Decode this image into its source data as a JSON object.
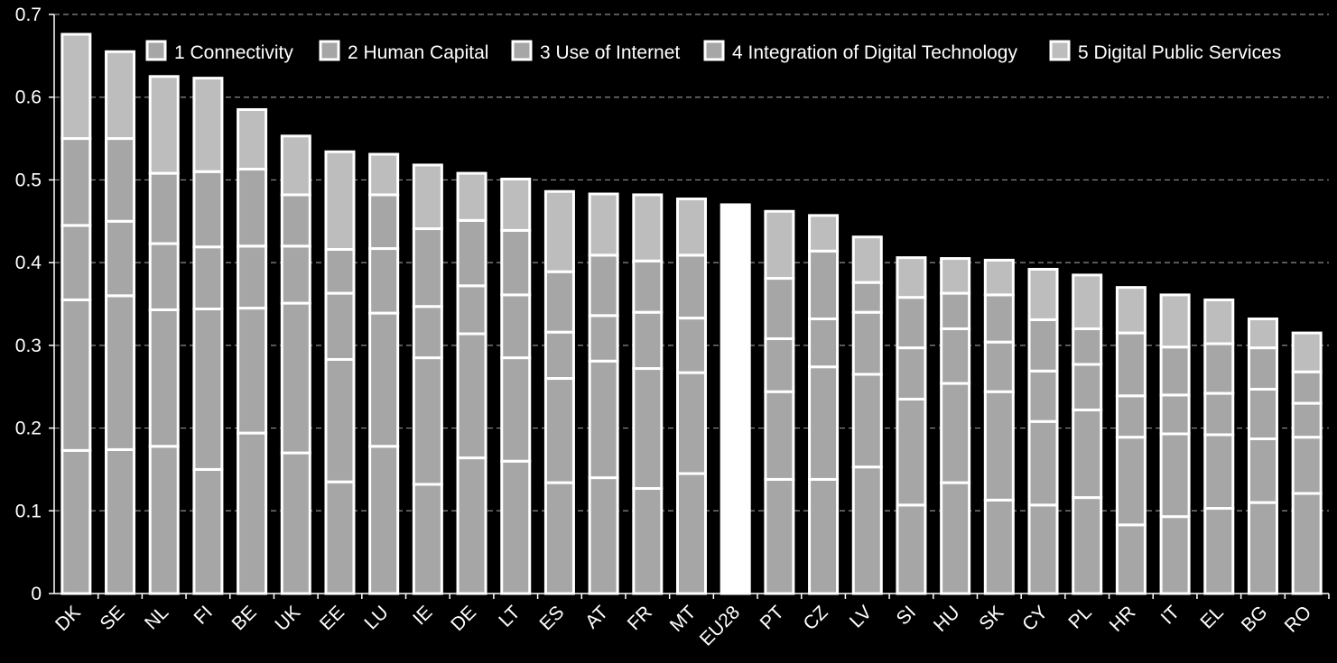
{
  "chart_data": {
    "type": "bar",
    "stacked": true,
    "title": "",
    "xlabel": "",
    "ylabel": "",
    "ylim": [
      0,
      0.7
    ],
    "yticks": [
      "0",
      "0.1",
      "0.2",
      "0.3",
      "0.4",
      "0.5",
      "0.6",
      "0.7"
    ],
    "grid": "horizontal dashed",
    "legend_position": "top",
    "categories": [
      "DK",
      "SE",
      "NL",
      "FI",
      "BE",
      "UK",
      "EE",
      "LU",
      "IE",
      "DE",
      "LT",
      "ES",
      "AT",
      "FR",
      "MT",
      "EU28",
      "PT",
      "CZ",
      "LV",
      "SI",
      "HU",
      "SK",
      "CY",
      "PL",
      "HR",
      "IT",
      "EL",
      "BG",
      "RO"
    ],
    "highlight": {
      "category": "EU28",
      "total": 0.47,
      "color": "#ffffff"
    },
    "series": [
      {
        "name": "1 Connectivity",
        "color": "#a6a6a6",
        "values": [
          0.173,
          0.174,
          0.178,
          0.15,
          0.194,
          0.17,
          0.135,
          0.178,
          0.132,
          0.164,
          0.16,
          0.134,
          0.14,
          0.127,
          0.145,
          null,
          0.138,
          0.138,
          0.153,
          0.107,
          0.134,
          0.113,
          0.107,
          0.116,
          0.083,
          0.093,
          0.103,
          0.11,
          0.121
        ]
      },
      {
        "name": "2 Human Capital",
        "color": "#a6a6a6",
        "values": [
          0.182,
          0.186,
          0.165,
          0.194,
          0.151,
          0.181,
          0.148,
          0.161,
          0.153,
          0.15,
          0.125,
          0.126,
          0.141,
          0.145,
          0.122,
          null,
          0.106,
          0.136,
          0.112,
          0.128,
          0.12,
          0.131,
          0.101,
          0.106,
          0.106,
          0.1,
          0.089,
          0.077,
          0.068
        ]
      },
      {
        "name": "3 Use of Internet",
        "color": "#a6a6a6",
        "values": [
          0.09,
          0.09,
          0.08,
          0.075,
          0.075,
          0.069,
          0.08,
          0.078,
          0.062,
          0.058,
          0.076,
          0.056,
          0.055,
          0.068,
          0.066,
          null,
          0.064,
          0.058,
          0.075,
          0.062,
          0.066,
          0.06,
          0.061,
          0.055,
          0.05,
          0.047,
          0.05,
          0.06,
          0.041
        ]
      },
      {
        "name": "4 Integration of Digital Technology",
        "color": "#a6a6a6",
        "values": [
          0.105,
          0.1,
          0.085,
          0.091,
          0.093,
          0.062,
          0.053,
          0.065,
          0.094,
          0.079,
          0.078,
          0.073,
          0.073,
          0.062,
          0.076,
          null,
          0.073,
          0.082,
          0.036,
          0.061,
          0.043,
          0.057,
          0.062,
          0.043,
          0.076,
          0.058,
          0.06,
          0.05,
          0.038
        ]
      },
      {
        "name": "5 Digital Public Services",
        "color": "#bdbdbd",
        "values": [
          0.126,
          0.105,
          0.117,
          0.113,
          0.072,
          0.071,
          0.118,
          0.049,
          0.077,
          0.057,
          0.062,
          0.097,
          0.074,
          0.08,
          0.068,
          null,
          0.081,
          0.043,
          0.055,
          0.048,
          0.042,
          0.042,
          0.061,
          0.065,
          0.055,
          0.063,
          0.053,
          0.035,
          0.047
        ]
      }
    ]
  }
}
